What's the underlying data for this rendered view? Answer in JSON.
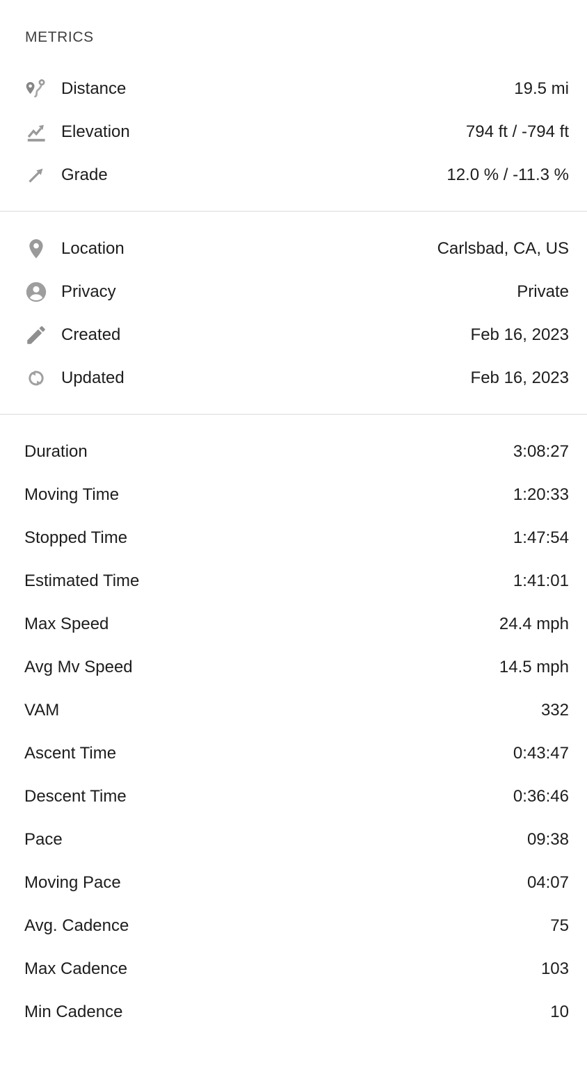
{
  "title": "METRICS",
  "colors": {
    "text": "#1d1d1d",
    "title": "#3f3f3f",
    "icon": "#919191",
    "divider": "#ebebeb",
    "background": "#ffffff"
  },
  "sections": [
    {
      "name": "route-metrics",
      "rows": [
        {
          "icon": "route-distance-icon",
          "label": "Distance",
          "value": "19.5 mi"
        },
        {
          "icon": "elevation-chart-icon",
          "label": "Elevation",
          "value": "794 ft / -794 ft"
        },
        {
          "icon": "grade-arrow-icon",
          "label": "Grade",
          "value": "12.0 % / -11.3 %"
        }
      ]
    },
    {
      "name": "ride-meta",
      "rows": [
        {
          "icon": "location-pin-icon",
          "label": "Location",
          "value": "Carlsbad, CA, US"
        },
        {
          "icon": "privacy-account-icon",
          "label": "Privacy",
          "value": "Private"
        },
        {
          "icon": "created-pencil-icon",
          "label": "Created",
          "value": "Feb 16, 2023"
        },
        {
          "icon": "updated-sync-icon",
          "label": "Updated",
          "value": "Feb 16, 2023"
        }
      ]
    },
    {
      "name": "time-stats",
      "rows": [
        {
          "label": "Duration",
          "value": "3:08:27"
        },
        {
          "label": "Moving Time",
          "value": "1:20:33"
        },
        {
          "label": "Stopped Time",
          "value": "1:47:54"
        },
        {
          "label": "Estimated Time",
          "value": "1:41:01"
        },
        {
          "label": "Max Speed",
          "value": "24.4 mph"
        },
        {
          "label": "Avg Mv Speed",
          "value": "14.5 mph"
        },
        {
          "label": "VAM",
          "value": "332"
        },
        {
          "label": "Ascent Time",
          "value": "0:43:47"
        },
        {
          "label": "Descent Time",
          "value": "0:36:46"
        },
        {
          "label": "Pace",
          "value": "09:38"
        },
        {
          "label": "Moving Pace",
          "value": "04:07"
        },
        {
          "label": "Avg. Cadence",
          "value": "75"
        },
        {
          "label": "Max Cadence",
          "value": "103"
        },
        {
          "label": "Min Cadence",
          "value": "10"
        }
      ]
    }
  ]
}
